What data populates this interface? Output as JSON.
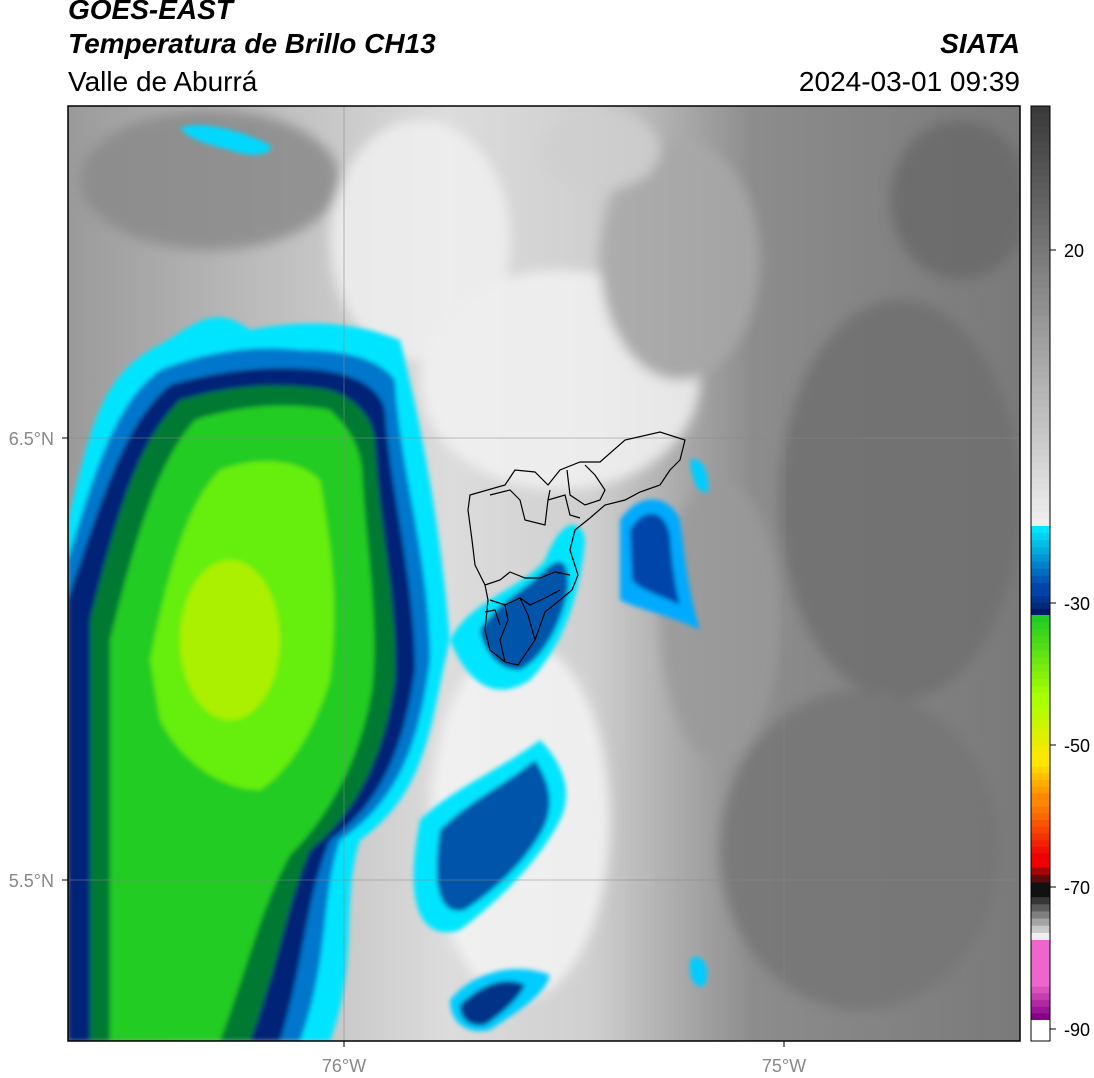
{
  "header": {
    "satellite": "GOES-EAST",
    "product": "Temperatura de Brillo CH13",
    "region": "Valle de Aburrá",
    "agency": "SIATA",
    "datetime": "2024-03-01 09:39"
  },
  "map": {
    "lat_labels": [
      "6.5°N",
      "5.5°N"
    ],
    "lon_labels": [
      "76°W",
      "75°W"
    ],
    "gridlines": true,
    "overlay": "municipal boundaries of Valle de Aburrá"
  },
  "colorbar": {
    "tick_labels": [
      "20",
      "-30",
      "-50",
      "-70",
      "-90"
    ],
    "units_shown": false,
    "colors": {
      "warm_gray_dark": "#3a3a3a",
      "light_gray": "#eeeeee",
      "cyan": "#00e5ff",
      "blue": "#0044aa",
      "navy": "#001a66",
      "green": "#22cc22",
      "lime": "#aaff00",
      "yellow": "#ffe600",
      "orange": "#ff8800",
      "red": "#ee0000",
      "black": "#111111",
      "pink": "#ee66cc",
      "purple": "#880088"
    }
  }
}
